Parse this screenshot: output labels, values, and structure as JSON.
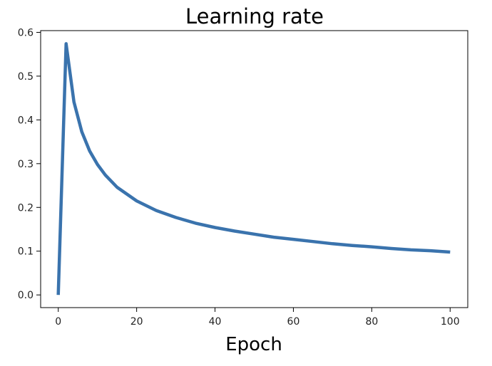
{
  "chart_data": {
    "type": "line",
    "title": "Learning rate",
    "xlabel": "Epoch",
    "ylabel": "",
    "xlim": [
      -4.5,
      104.5
    ],
    "ylim": [
      -0.029,
      0.604
    ],
    "xticks": [
      0,
      20,
      40,
      60,
      80,
      100
    ],
    "yticks": [
      0.0,
      0.1,
      0.2,
      0.3,
      0.4,
      0.5,
      0.6
    ],
    "xtick_labels": [
      "0",
      "20",
      "40",
      "60",
      "80",
      "100"
    ],
    "ytick_labels": [
      "0.0",
      "0.1",
      "0.2",
      "0.3",
      "0.4",
      "0.5",
      "0.6"
    ],
    "grid": false,
    "series": [
      {
        "color": "#3a73ad",
        "x": [
          0,
          2,
          4,
          6,
          8,
          10,
          12,
          15,
          20,
          25,
          30,
          35,
          40,
          45,
          50,
          55,
          60,
          65,
          70,
          75,
          80,
          85,
          90,
          95,
          100
        ],
        "y": [
          0.0,
          0.574,
          0.441,
          0.373,
          0.329,
          0.298,
          0.274,
          0.246,
          0.215,
          0.193,
          0.177,
          0.164,
          0.154,
          0.146,
          0.139,
          0.132,
          0.127,
          0.122,
          0.117,
          0.113,
          0.11,
          0.106,
          0.103,
          0.101,
          0.098
        ]
      }
    ]
  }
}
